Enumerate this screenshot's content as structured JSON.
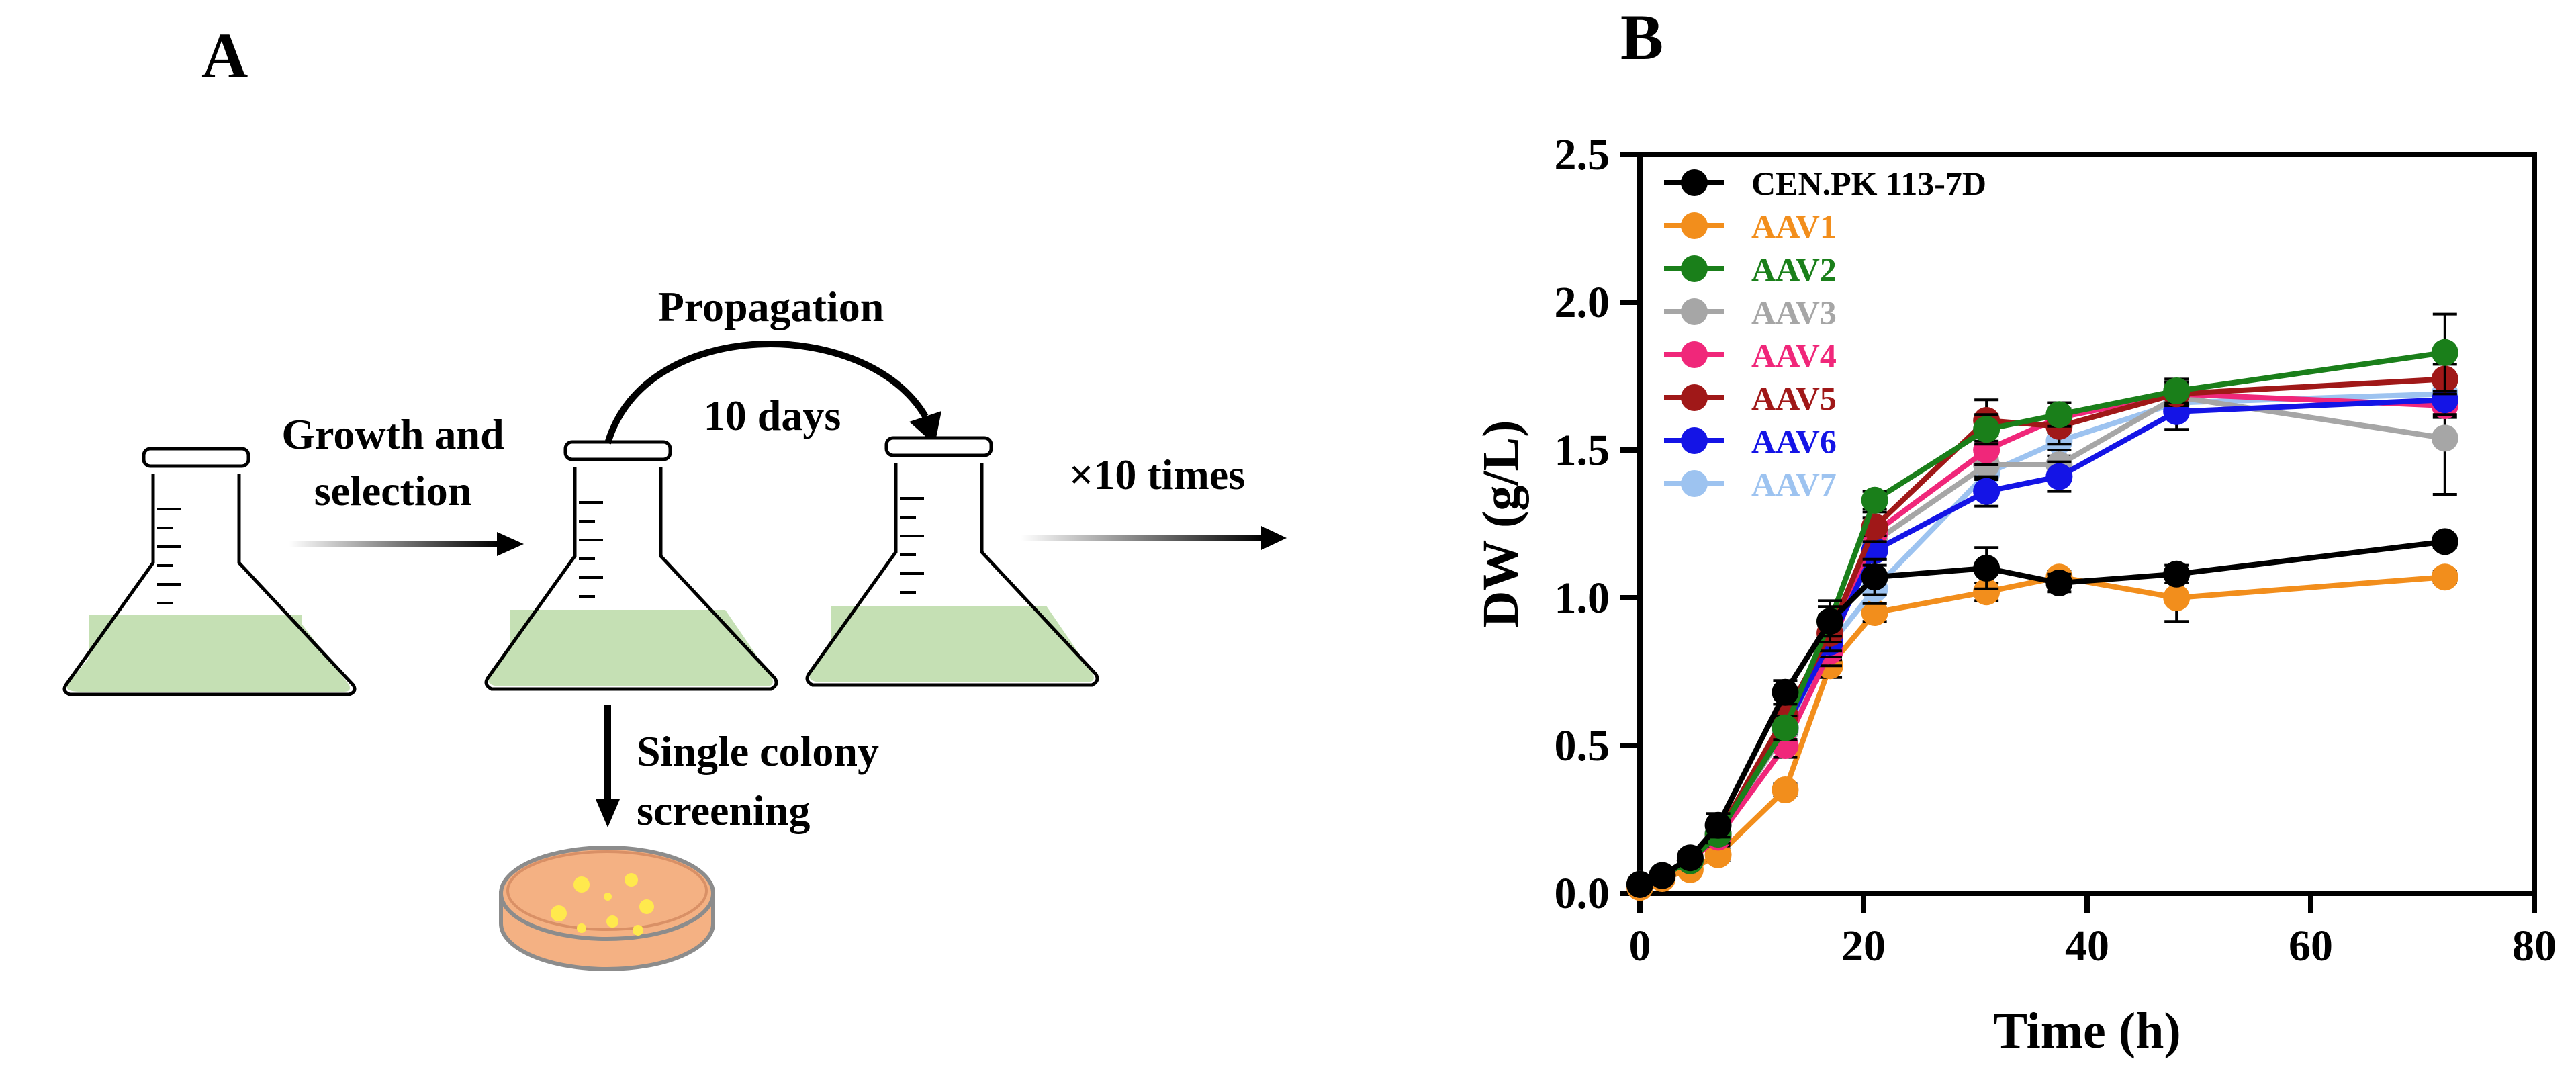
{
  "panel_a": {
    "label": "A",
    "growth_label_line1": "Growth and",
    "growth_label_line2": "selection",
    "propagation_label": "Propagation",
    "days_label": "10 days",
    "repeat_label": "×10 times",
    "screening_line1": "Single colony",
    "screening_line2": "screening",
    "colors": {
      "medium": "#c5e0b4",
      "plate": "#f4b183",
      "colony": "#ffe94d",
      "ink": "#000000"
    }
  },
  "panel_b": {
    "label": "B"
  },
  "chart_data": {
    "type": "line",
    "xlabel": "Time (h)",
    "ylabel": "DW (g/L)",
    "xlim": [
      0,
      80
    ],
    "ylim": [
      0,
      2.5
    ],
    "x_ticks": [
      0,
      20,
      40,
      60,
      80
    ],
    "x_tick_labels": [
      "0",
      "20",
      "40",
      "60",
      "80"
    ],
    "y_ticks": [
      0,
      0.5,
      1.0,
      1.5,
      2.0,
      2.5
    ],
    "y_tick_labels": [
      "0.0",
      "0.5",
      "1.0",
      "1.5",
      "2.0",
      "2.5"
    ],
    "grid": false,
    "legend_position": "top-left",
    "x": [
      0,
      2,
      4.5,
      7,
      13,
      17,
      21,
      31,
      37.5,
      48,
      72
    ],
    "series": [
      {
        "name": "CEN.PK 113-7D",
        "color": "#000000",
        "values": [
          0.03,
          0.06,
          0.12,
          0.23,
          0.68,
          0.92,
          1.07,
          1.1,
          1.05,
          1.08,
          1.19
        ],
        "errors": [
          0.01,
          0.01,
          0.02,
          0.04,
          0.04,
          0.05,
          0.06,
          0.07,
          0.03,
          0.03,
          0.02
        ]
      },
      {
        "name": "AAV1",
        "color": "#f28e1c",
        "values": [
          0.02,
          0.05,
          0.08,
          0.13,
          0.35,
          0.77,
          0.95,
          1.02,
          1.07,
          1.0,
          1.07
        ],
        "errors": [
          0.01,
          0.01,
          0.01,
          0.02,
          0.02,
          0.04,
          0.03,
          0.03,
          0.02,
          0.08,
          0.02
        ]
      },
      {
        "name": "AAV2",
        "color": "#1a7f1a",
        "values": [
          0.03,
          0.06,
          0.11,
          0.2,
          0.56,
          0.92,
          1.33,
          1.57,
          1.62,
          1.7,
          1.83
        ],
        "errors": [
          0.01,
          0.01,
          0.02,
          0.03,
          0.04,
          0.07,
          0.03,
          0.05,
          0.04,
          0.04,
          0.13
        ]
      },
      {
        "name": "AAV3",
        "color": "#a6a6a6",
        "values": [
          0.03,
          0.06,
          0.11,
          0.2,
          0.55,
          0.86,
          1.19,
          1.45,
          1.45,
          1.68,
          1.54
        ],
        "errors": [
          0.01,
          0.01,
          0.02,
          0.03,
          0.04,
          0.05,
          0.06,
          0.05,
          0.05,
          0.04,
          0.19
        ]
      },
      {
        "name": "AAV4",
        "color": "#f0277a",
        "values": [
          0.03,
          0.06,
          0.11,
          0.19,
          0.5,
          0.82,
          1.22,
          1.5,
          1.61,
          1.69,
          1.65
        ],
        "errors": [
          0.01,
          0.01,
          0.02,
          0.03,
          0.04,
          0.05,
          0.05,
          0.05,
          0.05,
          0.04,
          0.04
        ]
      },
      {
        "name": "AAV5",
        "color": "#a01818",
        "values": [
          0.03,
          0.06,
          0.11,
          0.2,
          0.6,
          0.88,
          1.24,
          1.6,
          1.58,
          1.69,
          1.74
        ],
        "errors": [
          0.01,
          0.01,
          0.02,
          0.03,
          0.04,
          0.06,
          0.05,
          0.07,
          0.06,
          0.04,
          0.05
        ]
      },
      {
        "name": "AAV6",
        "color": "#1414e6",
        "values": [
          0.03,
          0.06,
          0.11,
          0.2,
          0.56,
          0.85,
          1.16,
          1.36,
          1.41,
          1.63,
          1.67
        ],
        "errors": [
          0.01,
          0.01,
          0.02,
          0.03,
          0.04,
          0.05,
          0.05,
          0.05,
          0.05,
          0.06,
          0.05
        ]
      },
      {
        "name": "AAV7",
        "color": "#9dc3f0",
        "values": [
          0.03,
          0.06,
          0.11,
          0.2,
          0.55,
          0.84,
          1.03,
          1.42,
          1.53,
          1.66,
          1.69
        ],
        "errors": [
          0.01,
          0.01,
          0.02,
          0.03,
          0.04,
          0.05,
          0.05,
          0.05,
          0.05,
          0.04,
          0.04
        ]
      }
    ]
  }
}
